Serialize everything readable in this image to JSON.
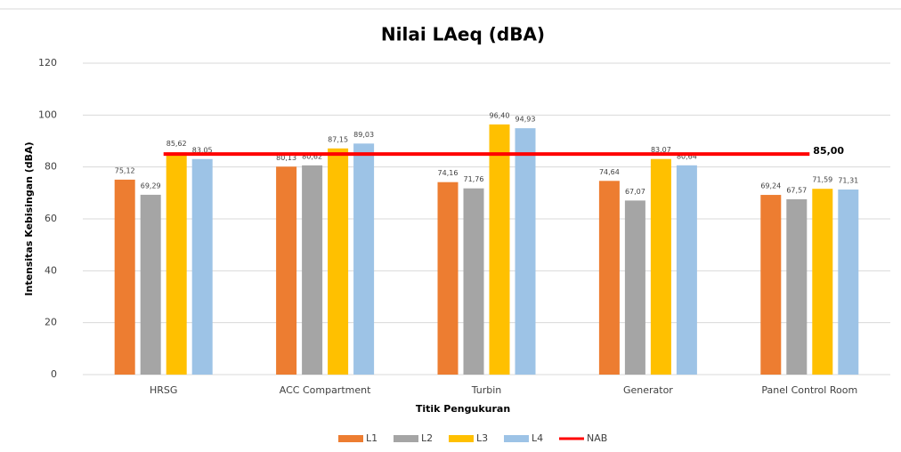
{
  "chart_data": {
    "type": "bar",
    "title": "Nilai LAeq (dBA)",
    "x_label": "Titik Pengukuran",
    "y_label": "Intensitas Kebisingan (dBA)",
    "categories": [
      "HRSG",
      "ACC Compartment",
      "Turbin",
      "Generator",
      "Panel Control Room"
    ],
    "series": [
      {
        "name": "L1",
        "color": "#ed7d31",
        "values": [
          75.12,
          80.13,
          74.16,
          74.64,
          69.24
        ],
        "value_labels": [
          "75,12",
          "80,13",
          "74,16",
          "74,64",
          "69,24"
        ]
      },
      {
        "name": "L2",
        "color": "#a5a5a5",
        "values": [
          69.29,
          80.62,
          71.76,
          67.07,
          67.57
        ],
        "value_labels": [
          "69,29",
          "80,62",
          "71,76",
          "67,07",
          "67,57"
        ]
      },
      {
        "name": "L3",
        "color": "#ffc000",
        "values": [
          85.62,
          87.15,
          96.4,
          83.07,
          71.59
        ],
        "value_labels": [
          "85,62",
          "87,15",
          "96,40",
          "83,07",
          "71,59"
        ]
      },
      {
        "name": "L4",
        "color": "#9dc3e6",
        "values": [
          83.05,
          89.03,
          94.93,
          80.64,
          71.31
        ],
        "value_labels": [
          "83,05",
          "89,03",
          "94,93",
          "80,64",
          "71,31"
        ]
      },
      {
        "name": "NAB",
        "type": "line",
        "color": "#ff0000",
        "values": [
          85,
          85,
          85,
          85,
          85
        ],
        "value_labels": [
          null,
          null,
          null,
          null,
          "85,00"
        ]
      }
    ],
    "ylim": [
      0,
      120
    ],
    "yticks": [
      0,
      20,
      40,
      60,
      80,
      100,
      120
    ],
    "grid": true,
    "legend": "bottom"
  }
}
